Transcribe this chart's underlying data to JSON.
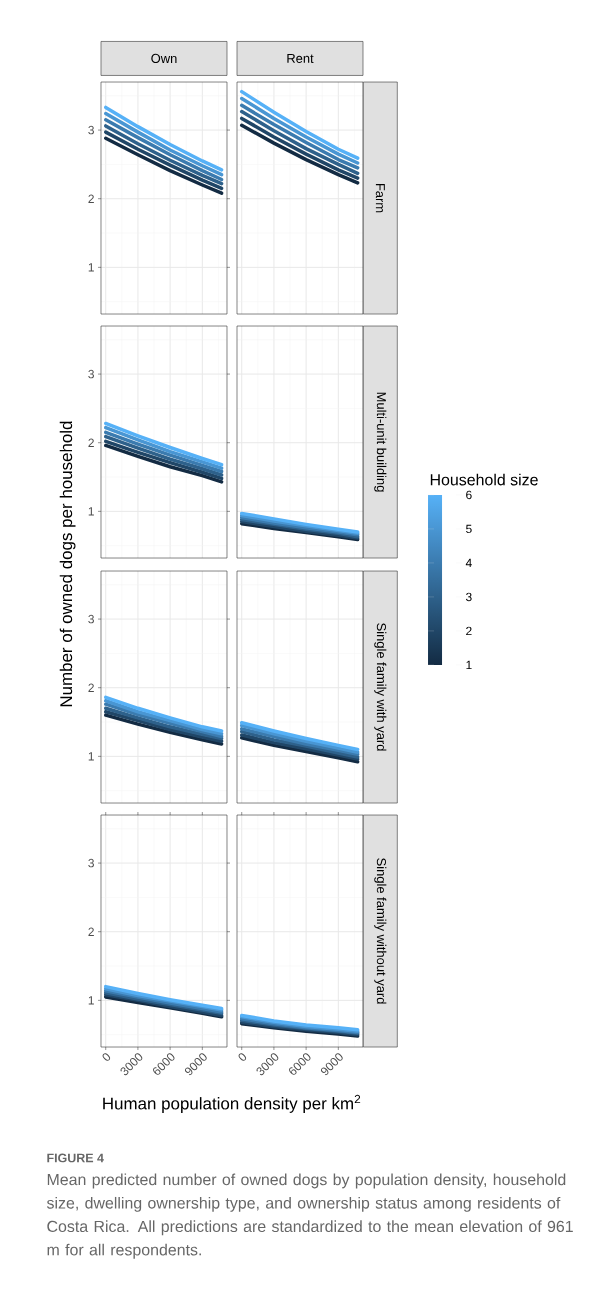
{
  "chart_data": [
    {
      "type": "line",
      "title": "Own",
      "x": [
        0,
        3000,
        6000,
        9000,
        10800
      ],
      "xlim": [
        -440,
        11300
      ],
      "ylim": [
        0.32,
        3.7
      ],
      "xticks": [
        0,
        3000,
        6000,
        9000
      ],
      "yticks": [
        1,
        2,
        3
      ],
      "grid": true,
      "tick_labels": "y",
      "series": [
        {
          "color": "#132b43",
          "values": [
            2.88,
            2.64,
            2.41,
            2.2,
            2.08
          ]
        },
        {
          "color": "#204667",
          "values": [
            2.97,
            2.72,
            2.49,
            2.27,
            2.15
          ]
        },
        {
          "color": "#2e618b",
          "values": [
            3.06,
            2.8,
            2.56,
            2.34,
            2.22
          ]
        },
        {
          "color": "#3b7baf",
          "values": [
            3.15,
            2.89,
            2.64,
            2.41,
            2.28
          ]
        },
        {
          "color": "#4996d3",
          "values": [
            3.24,
            2.97,
            2.71,
            2.48,
            2.35
          ]
        },
        {
          "color": "#56b1f7",
          "values": [
            3.33,
            3.05,
            2.79,
            2.55,
            2.42
          ]
        }
      ]
    },
    {
      "type": "line",
      "title": "Rent",
      "y2label": "Farm",
      "x": [
        0,
        3000,
        6000,
        9000,
        10800
      ],
      "xlim": [
        -440,
        11300
      ],
      "ylim": [
        0.32,
        3.7
      ],
      "xticks": [
        0,
        3000,
        6000,
        9000
      ],
      "yticks": [
        1,
        2,
        3
      ],
      "grid": true,
      "tick_labels": false,
      "series": [
        {
          "color": "#132b43",
          "values": [
            3.07,
            2.81,
            2.57,
            2.35,
            2.23
          ]
        },
        {
          "color": "#204667",
          "values": [
            3.17,
            2.9,
            2.65,
            2.42,
            2.3
          ]
        },
        {
          "color": "#2e618b",
          "values": [
            3.27,
            2.99,
            2.73,
            2.5,
            2.37
          ]
        },
        {
          "color": "#3b7baf",
          "values": [
            3.36,
            3.08,
            2.82,
            2.57,
            2.45
          ]
        },
        {
          "color": "#4996d3",
          "values": [
            3.46,
            3.17,
            2.9,
            2.65,
            2.52
          ]
        },
        {
          "color": "#56b1f7",
          "values": [
            3.56,
            3.26,
            2.98,
            2.72,
            2.59
          ]
        }
      ]
    },
    {
      "type": "line",
      "ylabel": "Number of owned dogs per household",
      "x": [
        0,
        3000,
        6000,
        9000,
        10800
      ],
      "xlim": [
        -440,
        11300
      ],
      "ylim": [
        0.32,
        3.7
      ],
      "xticks": [
        0,
        3000,
        6000,
        9000
      ],
      "yticks": [
        1,
        2,
        3
      ],
      "grid": true,
      "tick_labels": "y",
      "series": [
        {
          "color": "#132b43",
          "values": [
            1.96,
            1.8,
            1.65,
            1.52,
            1.43
          ]
        },
        {
          "color": "#204667",
          "values": [
            2.02,
            1.86,
            1.71,
            1.57,
            1.48
          ]
        },
        {
          "color": "#2e618b",
          "values": [
            2.09,
            1.92,
            1.76,
            1.62,
            1.53
          ]
        },
        {
          "color": "#3b7baf",
          "values": [
            2.15,
            1.98,
            1.82,
            1.67,
            1.58
          ]
        },
        {
          "color": "#4996d3",
          "values": [
            2.22,
            2.04,
            1.87,
            1.72,
            1.63
          ]
        },
        {
          "color": "#56b1f7",
          "values": [
            2.28,
            2.1,
            1.93,
            1.77,
            1.68
          ]
        }
      ]
    },
    {
      "type": "line",
      "y2label": "Multi-unit building",
      "clabel": "Household size",
      "clim": [
        1,
        6
      ],
      "cticks": [
        1,
        2,
        3,
        4,
        5,
        6
      ],
      "x": [
        0,
        3000,
        6000,
        9000,
        10800
      ],
      "xlim": [
        -440,
        11300
      ],
      "ylim": [
        0.32,
        3.7
      ],
      "xticks": [
        0,
        3000,
        6000,
        9000
      ],
      "yticks": [
        1,
        2,
        3
      ],
      "grid": true,
      "tick_labels": false,
      "series": [
        {
          "color": "#132b43",
          "values": [
            0.82,
            0.75,
            0.69,
            0.63,
            0.59
          ]
        },
        {
          "color": "#204667",
          "values": [
            0.85,
            0.78,
            0.71,
            0.65,
            0.61
          ]
        },
        {
          "color": "#2e618b",
          "values": [
            0.88,
            0.81,
            0.74,
            0.68,
            0.63
          ]
        },
        {
          "color": "#3b7baf",
          "values": [
            0.91,
            0.83,
            0.76,
            0.7,
            0.66
          ]
        },
        {
          "color": "#4996d3",
          "values": [
            0.94,
            0.86,
            0.79,
            0.72,
            0.68
          ]
        },
        {
          "color": "#56b1f7",
          "values": [
            0.97,
            0.89,
            0.81,
            0.74,
            0.7
          ]
        }
      ]
    },
    {
      "type": "line",
      "x": [
        0,
        3000,
        6000,
        9000,
        10800
      ],
      "xlim": [
        -440,
        11300
      ],
      "ylim": [
        0.32,
        3.7
      ],
      "xticks": [
        0,
        3000,
        6000,
        9000
      ],
      "yticks": [
        1,
        2,
        3
      ],
      "grid": true,
      "tick_labels": "y",
      "series": [
        {
          "color": "#132b43",
          "values": [
            1.6,
            1.47,
            1.35,
            1.24,
            1.18
          ]
        },
        {
          "color": "#204667",
          "values": [
            1.65,
            1.52,
            1.39,
            1.28,
            1.22
          ]
        },
        {
          "color": "#2e618b",
          "values": [
            1.7,
            1.56,
            1.43,
            1.32,
            1.26
          ]
        },
        {
          "color": "#3b7baf",
          "values": [
            1.76,
            1.61,
            1.48,
            1.36,
            1.29
          ]
        },
        {
          "color": "#4996d3",
          "values": [
            1.81,
            1.65,
            1.52,
            1.39,
            1.33
          ]
        },
        {
          "color": "#56b1f7",
          "values": [
            1.86,
            1.7,
            1.56,
            1.43,
            1.37
          ]
        }
      ]
    },
    {
      "type": "line",
      "y2label": "Single family with yard",
      "x": [
        0,
        3000,
        6000,
        9000,
        10800
      ],
      "xlim": [
        -440,
        11300
      ],
      "ylim": [
        0.32,
        3.7
      ],
      "xticks": [
        0,
        3000,
        6000,
        9000
      ],
      "yticks": [
        1,
        2,
        3
      ],
      "grid": true,
      "tick_labels": false,
      "series": [
        {
          "color": "#132b43",
          "values": [
            1.27,
            1.16,
            1.07,
            0.98,
            0.92
          ]
        },
        {
          "color": "#204667",
          "values": [
            1.31,
            1.2,
            1.11,
            1.02,
            0.96
          ]
        },
        {
          "color": "#2e618b",
          "values": [
            1.36,
            1.24,
            1.15,
            1.05,
            0.99
          ]
        },
        {
          "color": "#3b7baf",
          "values": [
            1.4,
            1.29,
            1.18,
            1.09,
            1.03
          ]
        },
        {
          "color": "#4996d3",
          "values": [
            1.45,
            1.33,
            1.22,
            1.12,
            1.06
          ]
        },
        {
          "color": "#56b1f7",
          "values": [
            1.49,
            1.37,
            1.26,
            1.16,
            1.1
          ]
        }
      ]
    },
    {
      "type": "line",
      "xlabel": "Human population density per km$^{2}$",
      "x": [
        0,
        3000,
        6000,
        9000,
        10800
      ],
      "xlim": [
        -440,
        11300
      ],
      "ylim": [
        0.32,
        3.7
      ],
      "xticks": [
        0,
        3000,
        6000,
        9000
      ],
      "yticks": [
        1,
        2,
        3
      ],
      "grid": true,
      "series": [
        {
          "color": "#132b43",
          "values": [
            1.05,
            0.97,
            0.89,
            0.81,
            0.76
          ]
        },
        {
          "color": "#204667",
          "values": [
            1.08,
            1.0,
            0.91,
            0.83,
            0.78
          ]
        },
        {
          "color": "#2e618b",
          "values": [
            1.11,
            1.02,
            0.94,
            0.86,
            0.81
          ]
        },
        {
          "color": "#3b7baf",
          "values": [
            1.14,
            1.05,
            0.96,
            0.88,
            0.83
          ]
        },
        {
          "color": "#4996d3",
          "values": [
            1.17,
            1.07,
            0.99,
            0.91,
            0.86
          ]
        },
        {
          "color": "#56b1f7",
          "values": [
            1.2,
            1.1,
            1.01,
            0.93,
            0.88
          ]
        }
      ]
    },
    {
      "type": "line",
      "y2label": "Single family without yard",
      "annotations": [
        "FIGURE 4",
        "Mean predicted number of owned dogs by population density, household size, dwelling ownership type, and ownership status among residents of Costa Rica. All predictions are standardized to the mean elevation of 961 m for all respondents."
      ],
      "x": [
        0,
        3000,
        6000,
        9000,
        10800
      ],
      "xlim": [
        -440,
        11300
      ],
      "ylim": [
        0.32,
        3.7
      ],
      "xticks": [
        0,
        3000,
        6000,
        9000
      ],
      "yticks": [
        1,
        2,
        3
      ],
      "grid": true,
      "tick_labels": "x",
      "series": [
        {
          "color": "#132b43",
          "values": [
            0.66,
            0.6,
            0.55,
            0.51,
            0.48
          ]
        },
        {
          "color": "#204667",
          "values": [
            0.68,
            0.62,
            0.57,
            0.53,
            0.5
          ]
        },
        {
          "color": "#2e618b",
          "values": [
            0.71,
            0.64,
            0.59,
            0.55,
            0.52
          ]
        },
        {
          "color": "#3b7baf",
          "values": [
            0.73,
            0.66,
            0.6,
            0.56,
            0.53
          ]
        },
        {
          "color": "#4996d3",
          "values": [
            0.76,
            0.68,
            0.62,
            0.58,
            0.55
          ]
        },
        {
          "color": "#56b1f7",
          "values": [
            0.78,
            0.7,
            0.64,
            0.6,
            0.57
          ]
        }
      ]
    }
  ]
}
